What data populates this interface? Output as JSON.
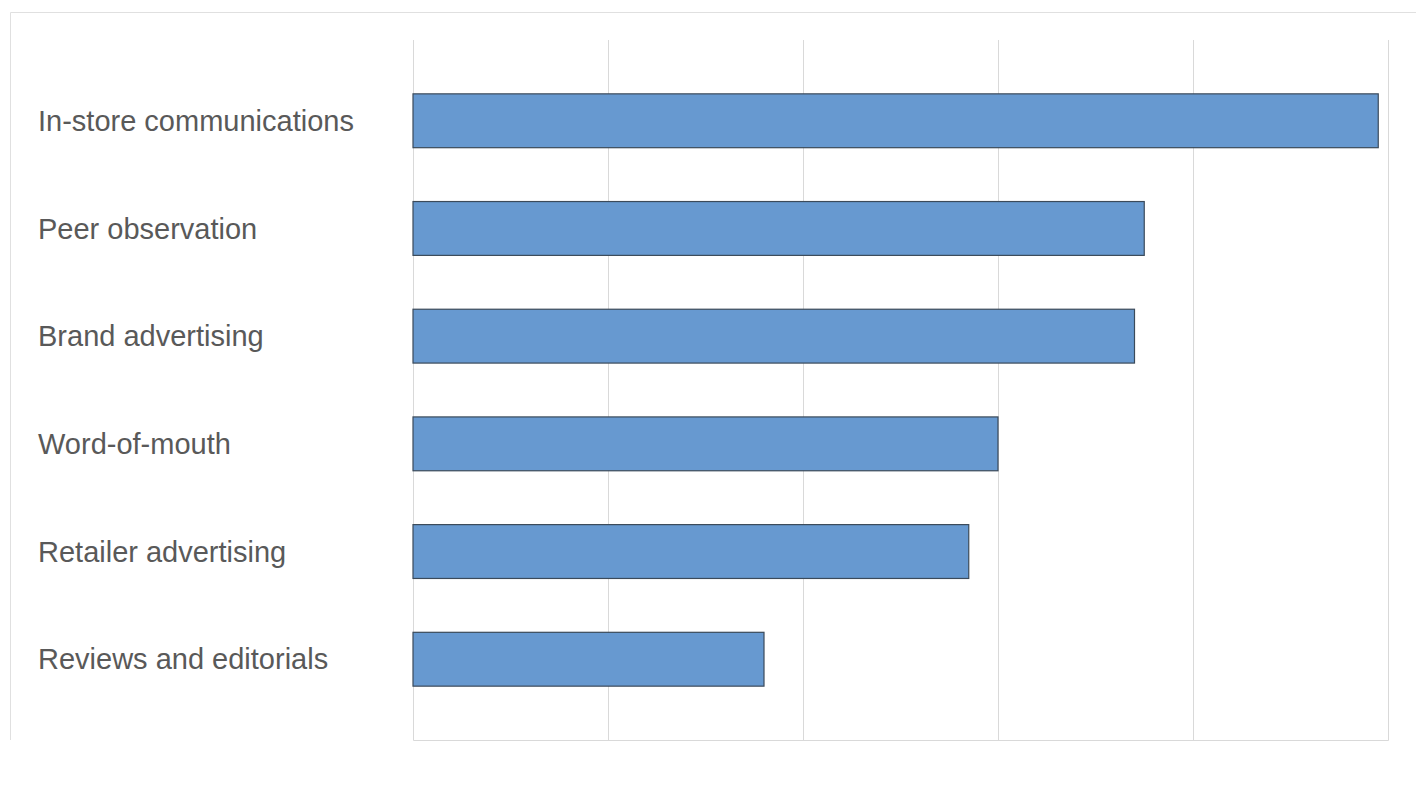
{
  "chart_data": {
    "type": "bar",
    "orientation": "horizontal",
    "categories": [
      "In-store communications",
      "Peer observation",
      "Brand advertising",
      "Word-of-mouth",
      "Retailer advertising",
      "Reviews and editorials"
    ],
    "values": [
      4.95,
      3.75,
      3.7,
      3.0,
      2.85,
      1.8
    ],
    "color": "#6799d0",
    "xlim": [
      0,
      5
    ],
    "xticks": [
      0,
      1,
      2,
      3,
      4,
      5
    ],
    "grid": true,
    "tick_labels": false
  }
}
